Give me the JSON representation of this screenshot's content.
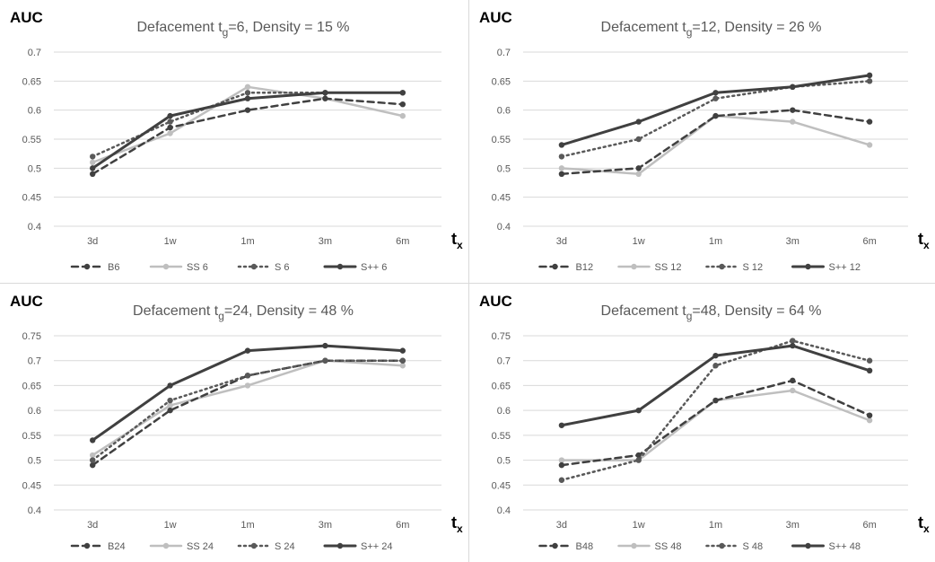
{
  "x_axis_symbol": "t",
  "x_axis_subscript": "x",
  "y_axis_label": "AUC",
  "chart_data": [
    {
      "type": "line",
      "title_prefix": "Defacement t",
      "title_subscript": "g",
      "title_suffix": "=6, Density = 15 %",
      "ylabel": "AUC",
      "xlabel_symbol": "t",
      "xlabel_subscript": "x",
      "categories": [
        "3d",
        "1w",
        "1m",
        "3m",
        "6m"
      ],
      "ylim": [
        0.4,
        0.7
      ],
      "yticks": [
        "0.4",
        "0.45",
        "0.5",
        "0.55",
        "0.6",
        "0.65",
        "0.7"
      ],
      "yticks_num": [
        0.4,
        0.45,
        0.5,
        0.55,
        0.6,
        0.65,
        0.7
      ],
      "grid": true,
      "legend": "bottom",
      "series": [
        {
          "name": "B6",
          "values": [
            0.49,
            0.57,
            0.6,
            0.62,
            0.61
          ],
          "style": "dashed",
          "color": "#404040"
        },
        {
          "name": "SS 6",
          "values": [
            0.51,
            0.56,
            0.64,
            0.62,
            0.59
          ],
          "style": "solid-light",
          "color": "#bfbfbf"
        },
        {
          "name": "S 6",
          "values": [
            0.52,
            0.58,
            0.63,
            0.63,
            0.63
          ],
          "style": "dotted",
          "color": "#595959"
        },
        {
          "name": "S++ 6",
          "values": [
            0.5,
            0.59,
            0.62,
            0.63,
            0.63
          ],
          "style": "solid",
          "color": "#404040"
        }
      ]
    },
    {
      "type": "line",
      "title_prefix": "Defacement t",
      "title_subscript": "g",
      "title_suffix": "=12, Density = 26 %",
      "ylabel": "AUC",
      "xlabel_symbol": "t",
      "xlabel_subscript": "x",
      "categories": [
        "3d",
        "1w",
        "1m",
        "3m",
        "6m"
      ],
      "ylim": [
        0.4,
        0.7
      ],
      "yticks": [
        "0.4",
        "0.45",
        "0.5",
        "0.55",
        "0.6",
        "0.65",
        "0.7"
      ],
      "yticks_num": [
        0.4,
        0.45,
        0.5,
        0.55,
        0.6,
        0.65,
        0.7
      ],
      "grid": true,
      "legend": "bottom",
      "series": [
        {
          "name": "B12",
          "values": [
            0.49,
            0.5,
            0.59,
            0.6,
            0.58
          ],
          "style": "dashed",
          "color": "#404040"
        },
        {
          "name": "SS 12",
          "values": [
            0.5,
            0.49,
            0.59,
            0.58,
            0.54
          ],
          "style": "solid-light",
          "color": "#bfbfbf"
        },
        {
          "name": "S 12",
          "values": [
            0.52,
            0.55,
            0.62,
            0.64,
            0.65
          ],
          "style": "dotted",
          "color": "#595959"
        },
        {
          "name": "S++ 12",
          "values": [
            0.54,
            0.58,
            0.63,
            0.64,
            0.66
          ],
          "style": "solid",
          "color": "#404040"
        }
      ]
    },
    {
      "type": "line",
      "title_prefix": "Defacement t",
      "title_subscript": "g",
      "title_suffix": "=24, Density = 48 %",
      "ylabel": "AUC",
      "xlabel_symbol": "t",
      "xlabel_subscript": "x",
      "categories": [
        "3d",
        "1w",
        "1m",
        "3m",
        "6m"
      ],
      "ylim": [
        0.4,
        0.75
      ],
      "yticks": [
        "0.4",
        "0.45",
        "0.5",
        "0.55",
        "0.6",
        "0.65",
        "0.7",
        "0.75"
      ],
      "yticks_num": [
        0.4,
        0.45,
        0.5,
        0.55,
        0.6,
        0.65,
        0.7,
        0.75
      ],
      "grid": true,
      "legend": "bottom",
      "series": [
        {
          "name": "B24",
          "values": [
            0.49,
            0.6,
            0.67,
            0.7,
            0.7
          ],
          "style": "dashed",
          "color": "#404040"
        },
        {
          "name": "SS 24",
          "values": [
            0.51,
            0.61,
            0.65,
            0.7,
            0.69
          ],
          "style": "solid-light",
          "color": "#bfbfbf"
        },
        {
          "name": "S 24",
          "values": [
            0.5,
            0.62,
            0.67,
            0.7,
            0.7
          ],
          "style": "dotted",
          "color": "#595959"
        },
        {
          "name": "S++ 24",
          "values": [
            0.54,
            0.65,
            0.72,
            0.73,
            0.72
          ],
          "style": "solid",
          "color": "#404040"
        }
      ]
    },
    {
      "type": "line",
      "title_prefix": "Defacement t",
      "title_subscript": "g",
      "title_suffix": "=48, Density = 64 %",
      "ylabel": "AUC",
      "xlabel_symbol": "t",
      "xlabel_subscript": "x",
      "categories": [
        "3d",
        "1w",
        "1m",
        "3m",
        "6m"
      ],
      "ylim": [
        0.4,
        0.75
      ],
      "yticks": [
        "0.4",
        "0.45",
        "0.5",
        "0.55",
        "0.6",
        "0.65",
        "0.7",
        "0.75"
      ],
      "yticks_num": [
        0.4,
        0.45,
        0.5,
        0.55,
        0.6,
        0.65,
        0.7,
        0.75
      ],
      "grid": true,
      "legend": "bottom",
      "series": [
        {
          "name": "B48",
          "values": [
            0.49,
            0.51,
            0.62,
            0.66,
            0.59
          ],
          "style": "dashed",
          "color": "#404040"
        },
        {
          "name": "SS 48",
          "values": [
            0.5,
            0.5,
            0.62,
            0.64,
            0.58
          ],
          "style": "solid-light",
          "color": "#bfbfbf"
        },
        {
          "name": "S 48",
          "values": [
            0.46,
            0.5,
            0.69,
            0.74,
            0.7
          ],
          "style": "dotted",
          "color": "#595959"
        },
        {
          "name": "S++ 48",
          "values": [
            0.57,
            0.6,
            0.71,
            0.73,
            0.68
          ],
          "style": "solid",
          "color": "#404040"
        }
      ]
    }
  ]
}
